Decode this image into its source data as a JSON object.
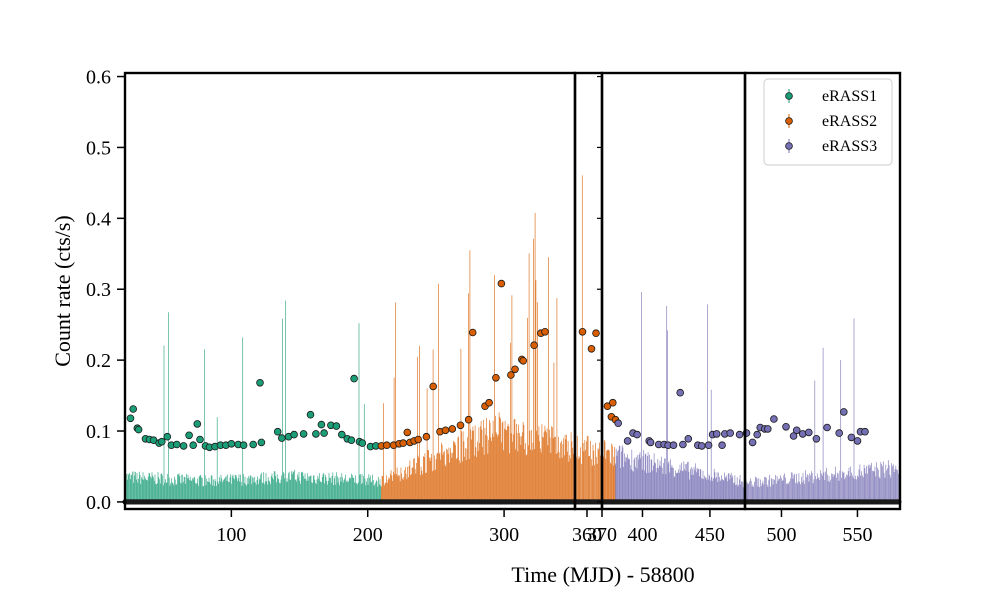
{
  "chart_data": {
    "type": "scatter",
    "xlabel": "Time (MJD) - 58800",
    "ylabel": "Count rate (cts/s)",
    "ylim": [
      -0.01,
      0.605
    ],
    "yticks": [
      "0.0",
      "0.1",
      "0.2",
      "0.3",
      "0.4",
      "0.5",
      "0.6"
    ],
    "ytick_values": [
      0.0,
      0.1,
      0.2,
      0.3,
      0.4,
      0.5,
      0.6
    ],
    "legend_position": "top-right",
    "panels": [
      {
        "xlim": [
          22,
          352
        ],
        "xticks": [
          "100",
          "200",
          "300"
        ],
        "xtick_values": [
          100,
          200,
          300
        ]
      },
      {
        "xlim": [
          352,
          370
        ],
        "xticks": [
          "360",
          "370"
        ],
        "xtick_values": [
          360,
          370
        ]
      },
      {
        "xlim": [
          370,
          476
        ],
        "xticks": [
          "400",
          "450"
        ],
        "xtick_values": [
          400,
          450
        ]
      },
      {
        "xlim": [
          476,
          578
        ],
        "xticks": [
          "500",
          "550"
        ],
        "xtick_values": [
          500,
          550
        ]
      }
    ],
    "series": [
      {
        "name": "eRASS1",
        "color": "#1b9e77",
        "points": [
          [
            26,
            0.118
          ],
          [
            28,
            0.131
          ],
          [
            31,
            0.104
          ],
          [
            32,
            0.102
          ],
          [
            37,
            0.089
          ],
          [
            40,
            0.088
          ],
          [
            43,
            0.087
          ],
          [
            47,
            0.083
          ],
          [
            49,
            0.085
          ],
          [
            53,
            0.092
          ],
          [
            56,
            0.08
          ],
          [
            60,
            0.081
          ],
          [
            65,
            0.079
          ],
          [
            69,
            0.094
          ],
          [
            72,
            0.08
          ],
          [
            75,
            0.11
          ],
          [
            77,
            0.088
          ],
          [
            81,
            0.079
          ],
          [
            84,
            0.077
          ],
          [
            88,
            0.078
          ],
          [
            92,
            0.08
          ],
          [
            96,
            0.08
          ],
          [
            100,
            0.082
          ],
          [
            105,
            0.081
          ],
          [
            109,
            0.08
          ],
          [
            116,
            0.081
          ],
          [
            121,
            0.168
          ],
          [
            122,
            0.084
          ],
          [
            134,
            0.099
          ],
          [
            137,
            0.09
          ],
          [
            142,
            0.092
          ],
          [
            146,
            0.095
          ],
          [
            153,
            0.096
          ],
          [
            158,
            0.123
          ],
          [
            162,
            0.096
          ],
          [
            166,
            0.109
          ],
          [
            168,
            0.097
          ],
          [
            173,
            0.108
          ],
          [
            177,
            0.107
          ],
          [
            181,
            0.095
          ],
          [
            185,
            0.089
          ],
          [
            188,
            0.087
          ],
          [
            190,
            0.174
          ],
          [
            194,
            0.085
          ],
          [
            196,
            0.083
          ],
          [
            202,
            0.078
          ],
          [
            206,
            0.079
          ]
        ],
        "baseline": [
          0.045,
          0.038,
          0.046,
          0.038
        ]
      },
      {
        "name": "eRASS2",
        "color": "#d95f02",
        "points": [
          [
            210,
            0.079
          ],
          [
            214,
            0.08
          ],
          [
            219,
            0.08
          ],
          [
            223,
            0.082
          ],
          [
            226,
            0.083
          ],
          [
            229,
            0.098
          ],
          [
            231,
            0.084
          ],
          [
            234,
            0.086
          ],
          [
            237,
            0.088
          ],
          [
            243,
            0.092
          ],
          [
            248,
            0.163
          ],
          [
            253,
            0.099
          ],
          [
            257,
            0.101
          ],
          [
            262,
            0.103
          ],
          [
            268,
            0.108
          ],
          [
            274,
            0.116
          ],
          [
            277,
            0.239
          ],
          [
            286,
            0.135
          ],
          [
            289,
            0.14
          ],
          [
            294,
            0.175
          ],
          [
            298,
            0.308
          ],
          [
            305,
            0.179
          ],
          [
            308,
            0.187
          ],
          [
            313,
            0.201
          ],
          [
            314,
            0.199
          ],
          [
            322,
            0.221
          ],
          [
            327,
            0.238
          ],
          [
            330,
            0.24
          ],
          [
            357,
            0.24
          ],
          [
            363,
            0.216
          ],
          [
            366,
            0.238
          ],
          [
            374,
            0.135
          ],
          [
            378,
            0.14
          ],
          [
            377,
            0.12
          ],
          [
            380,
            0.116
          ]
        ],
        "baseline": [
          0.038,
          0.128,
          0.084
        ]
      },
      {
        "name": "eRASS3",
        "color": "#7570b3",
        "points": [
          [
            382,
            0.111
          ],
          [
            389,
            0.086
          ],
          [
            393,
            0.097
          ],
          [
            396,
            0.095
          ],
          [
            405,
            0.086
          ],
          [
            406,
            0.084
          ],
          [
            412,
            0.081
          ],
          [
            416,
            0.081
          ],
          [
            419,
            0.08
          ],
          [
            423,
            0.08
          ],
          [
            428,
            0.154
          ],
          [
            430,
            0.081
          ],
          [
            434,
            0.089
          ],
          [
            441,
            0.08
          ],
          [
            444,
            0.079
          ],
          [
            449,
            0.08
          ],
          [
            452,
            0.095
          ],
          [
            455,
            0.096
          ],
          [
            459,
            0.08
          ],
          [
            461,
            0.096
          ],
          [
            465,
            0.097
          ],
          [
            472,
            0.095
          ],
          [
            477,
            0.097
          ],
          [
            481,
            0.084
          ],
          [
            484,
            0.095
          ],
          [
            486,
            0.105
          ],
          [
            489,
            0.103
          ],
          [
            491,
            0.103
          ],
          [
            495,
            0.117
          ],
          [
            503,
            0.106
          ],
          [
            508,
            0.093
          ],
          [
            510,
            0.101
          ],
          [
            514,
            0.096
          ],
          [
            518,
            0.098
          ],
          [
            523,
            0.089
          ],
          [
            530,
            0.105
          ],
          [
            538,
            0.097
          ],
          [
            541,
            0.127
          ],
          [
            546,
            0.091
          ],
          [
            550,
            0.086
          ],
          [
            552,
            0.099
          ],
          [
            555,
            0.099
          ]
        ],
        "baseline": [
          0.084,
          0.035,
          0.062
        ]
      }
    ]
  }
}
